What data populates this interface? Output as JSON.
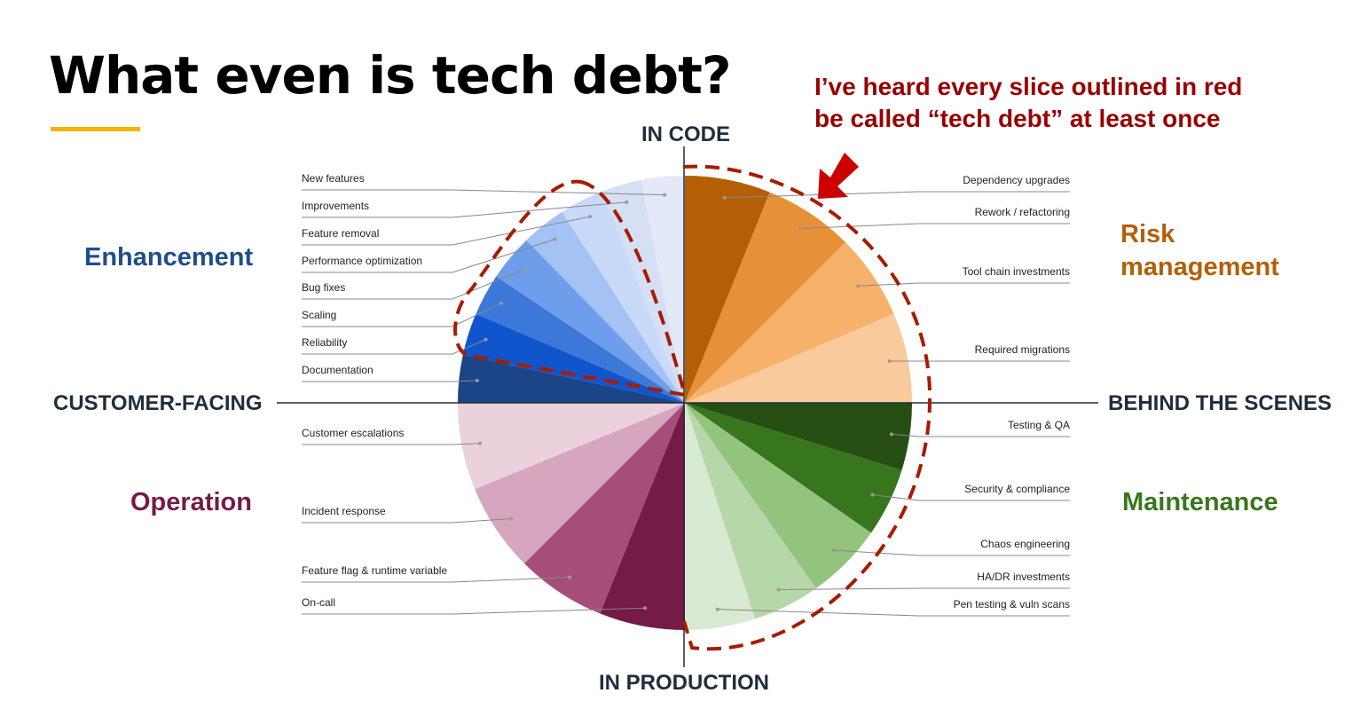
{
  "chart_data": {
    "type": "pie",
    "title": "What even is tech debt?",
    "annotation": [
      "I’ve heard every slice outlined in red",
      "be called “tech debt” at least once"
    ],
    "axis_labels": {
      "top": "IN CODE",
      "bottom": "IN PRODUCTION",
      "left": "CUSTOMER-FACING",
      "right": "BEHIND THE SCENES"
    },
    "quadrant_labels": {
      "top_left": "Enhancement",
      "top_right": [
        "Risk",
        "management"
      ],
      "bottom_left": "Operation",
      "bottom_right": "Maintenance"
    },
    "categories": [
      "Dependency upgrades",
      "Rework / refactoring",
      "Tool chain investments",
      "Required migrations",
      "Testing & QA",
      "Security & compliance",
      "Chaos engineering",
      "HA/DR investments",
      "Pen testing & vuln scans",
      "On-call",
      "Feature flag & runtime variable",
      "Incident response",
      "Customer escalations",
      "Documentation",
      "Reliability",
      "Scaling",
      "Bug fixes",
      "Performance optimization",
      "Feature removal",
      "Improvements",
      "New features"
    ],
    "values": [
      6.1,
      6.4,
      6.1,
      6.4,
      4.8,
      4.9,
      5.5,
      4.8,
      5.0,
      6.1,
      6.4,
      6.3,
      6.2,
      3.4,
      3.0,
      3.0,
      3.3,
      3.2,
      3.2,
      2.8,
      3.1
    ],
    "colors": [
      "#b45f06",
      "#e69138",
      "#f6b26b",
      "#f9cb9c",
      "#274e13",
      "#38761d",
      "#93c47d",
      "#b6d7a8",
      "#d9ead3",
      "#741b47",
      "#a64d79",
      "#d5a6bd",
      "#ead1dc",
      "#1c4587",
      "#1155cc",
      "#3c78d8",
      "#6d9eeb",
      "#a4c2f4",
      "#c9daf8",
      "#d5e0f5",
      "#e3e9f6"
    ]
  }
}
